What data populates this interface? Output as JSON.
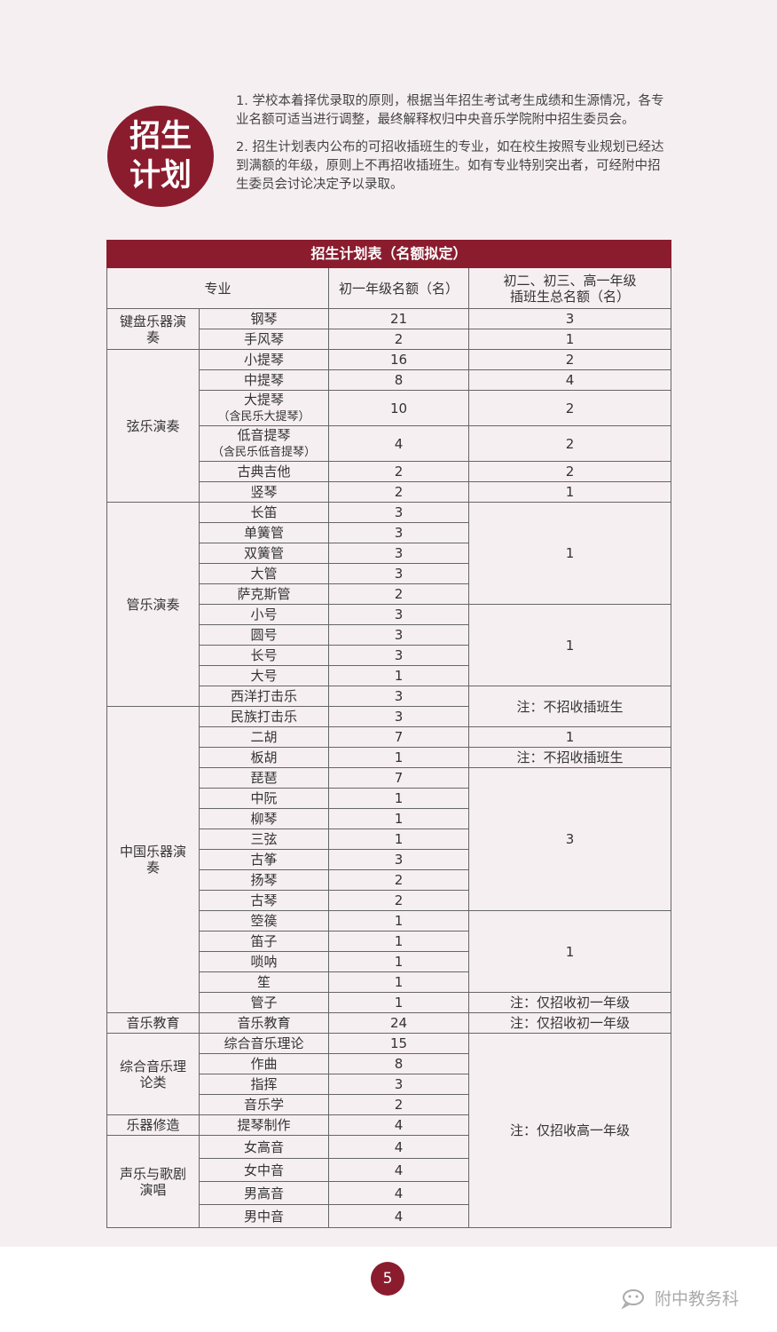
{
  "badge": {
    "line1": "招生",
    "line2": "计划"
  },
  "intro": [
    "1. 学校本着择优录取的原则，根据当年招生考试考生成绩和生源情况，各专业名额可适当进行调整，最终解释权归中央音乐学院附中招生委员会。",
    "2. 招生计划表内公布的可招收插班生的专业，如在校生按照专业规划已经达到满额的年级，原则上不再招收插班生。如有专业特别突出者，可经附中招生委员会讨论决定予以录取。"
  ],
  "table": {
    "title": "招生计划表（名额拟定）",
    "headers": {
      "major": "专业",
      "grade7": "初一年级名额（名）",
      "transfer_line1": "初二、初三、高一年级",
      "transfer_line2": "插班生总名额（名）"
    },
    "categories": [
      {
        "name": "键盘乐器演奏",
        "rows": [
          {
            "major": "钢琴",
            "quota": "21"
          },
          {
            "major": "手风琴",
            "quota": "2"
          }
        ]
      },
      {
        "name": "弦乐演奏",
        "rows": [
          {
            "major": "小提琴",
            "quota": "16"
          },
          {
            "major": "中提琴",
            "quota": "8"
          },
          {
            "major": "大提琴",
            "sub": "（含民乐大提琴）",
            "quota": "10"
          },
          {
            "major": "低音提琴",
            "sub": "（含民乐低音提琴）",
            "quota": "4"
          },
          {
            "major": "古典吉他",
            "quota": "2"
          },
          {
            "major": "竖琴",
            "quota": "2"
          }
        ]
      },
      {
        "name": "管乐演奏",
        "rows": [
          {
            "major": "长笛",
            "quota": "3"
          },
          {
            "major": "单簧管",
            "quota": "3"
          },
          {
            "major": "双簧管",
            "quota": "3"
          },
          {
            "major": "大管",
            "quota": "3"
          },
          {
            "major": "萨克斯管",
            "quota": "2"
          },
          {
            "major": "小号",
            "quota": "3"
          },
          {
            "major": "圆号",
            "quota": "3"
          },
          {
            "major": "长号",
            "quota": "3"
          },
          {
            "major": "大号",
            "quota": "1"
          },
          {
            "major": "西洋打击乐",
            "quota": "3"
          }
        ]
      },
      {
        "name": "中国乐器演奏",
        "rows": [
          {
            "major": "民族打击乐",
            "quota": "3"
          },
          {
            "major": "二胡",
            "quota": "7"
          },
          {
            "major": "板胡",
            "quota": "1"
          },
          {
            "major": "琵琶",
            "quota": "7"
          },
          {
            "major": "中阮",
            "quota": "1"
          },
          {
            "major": "柳琴",
            "quota": "1"
          },
          {
            "major": "三弦",
            "quota": "1"
          },
          {
            "major": "古筝",
            "quota": "3"
          },
          {
            "major": "扬琴",
            "quota": "2"
          },
          {
            "major": "古琴",
            "quota": "2"
          },
          {
            "major": "箜篌",
            "quota": "1"
          },
          {
            "major": "笛子",
            "quota": "1"
          },
          {
            "major": "唢呐",
            "quota": "1"
          },
          {
            "major": "笙",
            "quota": "1"
          },
          {
            "major": "管子",
            "quota": "1"
          }
        ]
      },
      {
        "name": "音乐教育",
        "rows": [
          {
            "major": "音乐教育",
            "quota": "24"
          }
        ]
      },
      {
        "name": "综合音乐理论类",
        "rows": [
          {
            "major": "综合音乐理论",
            "quota": "15"
          },
          {
            "major": "作曲",
            "quota": "8"
          },
          {
            "major": "指挥",
            "quota": "3"
          },
          {
            "major": "音乐学",
            "quota": "2"
          }
        ]
      },
      {
        "name": "乐器修造",
        "rows": [
          {
            "major": "提琴制作",
            "quota": "4"
          }
        ]
      },
      {
        "name": "声乐与歌剧演唱",
        "rows": [
          {
            "major": "女高音",
            "quota": "4"
          },
          {
            "major": "女中音",
            "quota": "4"
          },
          {
            "major": "男高音",
            "quota": "4"
          },
          {
            "major": "男中音",
            "quota": "4"
          }
        ]
      }
    ],
    "transfer_groups": [
      {
        "value": "3",
        "count": 1
      },
      {
        "value": "1",
        "count": 1
      },
      {
        "value": "2",
        "count": 1
      },
      {
        "value": "4",
        "count": 1
      },
      {
        "value": "2",
        "count": 1
      },
      {
        "value": "2",
        "count": 1
      },
      {
        "value": "2",
        "count": 1
      },
      {
        "value": "1",
        "count": 1
      },
      {
        "value": "1",
        "count": 5
      },
      {
        "value": "1",
        "count": 4
      },
      {
        "value": "注：不招收插班生",
        "count": 2
      },
      {
        "value": "1",
        "count": 1
      },
      {
        "value": "注：不招收插班生",
        "count": 1
      },
      {
        "value": "3",
        "count": 7
      },
      {
        "value": "1",
        "count": 4
      },
      {
        "value": "注：仅招收初一年级",
        "count": 1
      },
      {
        "value": "注：仅招收初一年级",
        "count": 1
      },
      {
        "value": "注：仅招收高一年级",
        "count": 9
      }
    ]
  },
  "footer": {
    "page": "5",
    "watermark": "附中教务科"
  },
  "colors": {
    "accent": "#8a1c2e",
    "background": "#f6eff1"
  }
}
